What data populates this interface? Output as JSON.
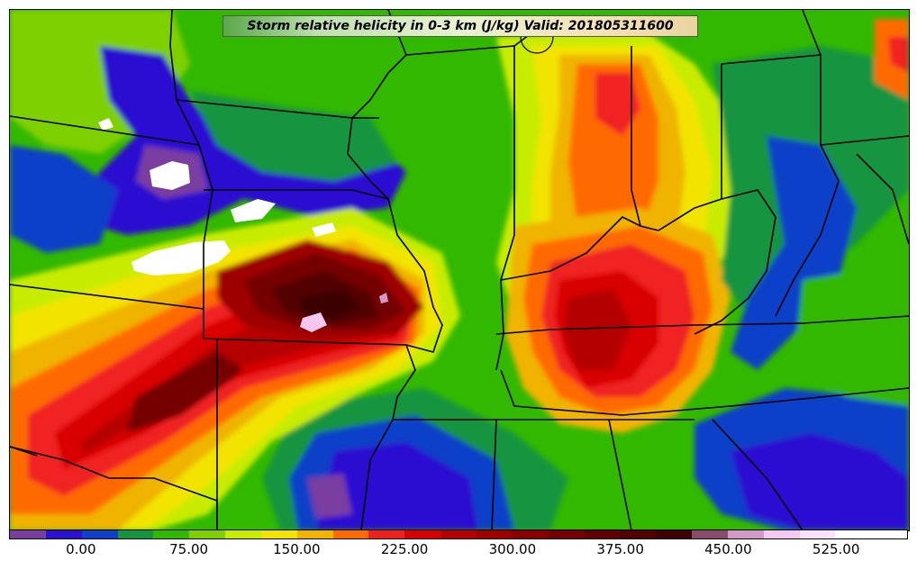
{
  "title": "Storm relative helicity in 0-3 km (J/kg) Valid: 201805311600",
  "colorbar": {
    "colors": [
      "#7a3ea0",
      "#2a10d0",
      "#1040c8",
      "#179440",
      "#33b800",
      "#7ed000",
      "#c8ec00",
      "#f2e400",
      "#f0b400",
      "#ff6a00",
      "#f02020",
      "#d80000",
      "#b40000",
      "#9e0000",
      "#8a0000",
      "#740000",
      "#600000",
      "#520000",
      "#3e0000",
      "#8a4a6a",
      "#d29ac8",
      "#f4c8f0",
      "#fbe0fb",
      "#ffffff",
      "#ffffff"
    ],
    "tick_labels": [
      "0.00",
      "75.00",
      "150.00",
      "225.00",
      "300.00",
      "375.00",
      "450.00",
      "525.00"
    ],
    "tick_values": [
      0,
      75,
      150,
      225,
      300,
      375,
      450,
      525
    ],
    "range": [
      -50,
      575
    ],
    "interval": 25
  }
}
